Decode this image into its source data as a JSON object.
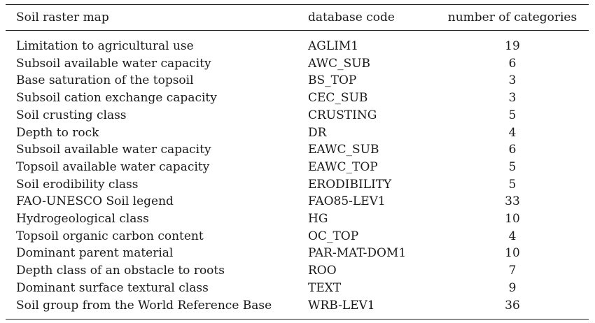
{
  "table": {
    "headers": [
      "Soil raster map",
      "database code",
      "number of categories"
    ],
    "rows": [
      {
        "map": "Limitation to agricultural use",
        "code": "AGLIM1",
        "categories": "19"
      },
      {
        "map": "Subsoil available water capacity",
        "code": "AWC_SUB",
        "categories": "6"
      },
      {
        "map": "Base saturation of the topsoil",
        "code": "BS_TOP",
        "categories": "3"
      },
      {
        "map": "Subsoil cation exchange capacity",
        "code": "CEC_SUB",
        "categories": "3"
      },
      {
        "map": "Soil crusting class",
        "code": "CRUSTING",
        "categories": "5"
      },
      {
        "map": "Depth to rock",
        "code": "DR",
        "categories": "4"
      },
      {
        "map": "Subsoil available water capacity",
        "code": "EAWC_SUB",
        "categories": "6"
      },
      {
        "map": "Topsoil available water capacity",
        "code": "EAWC_TOP",
        "categories": "5"
      },
      {
        "map": "Soil erodibility class",
        "code": "ERODIBILITY",
        "categories": "5"
      },
      {
        "map": "FAO-UNESCO Soil legend",
        "code": "FAO85-LEV1",
        "categories": "33"
      },
      {
        "map": "Hydrogeological class",
        "code": "HG",
        "categories": "10"
      },
      {
        "map": "Topsoil organic carbon content",
        "code": "OC_TOP",
        "categories": "4"
      },
      {
        "map": "Dominant parent material",
        "code": "PAR-MAT-DOM1",
        "categories": "10"
      },
      {
        "map": "Depth class of an obstacle to roots",
        "code": "ROO",
        "categories": "7"
      },
      {
        "map": "Dominant surface textural class",
        "code": "TEXT",
        "categories": "9"
      },
      {
        "map": "Soil group from the World Reference Base",
        "code": "WRB-LEV1",
        "categories": "36"
      }
    ]
  }
}
